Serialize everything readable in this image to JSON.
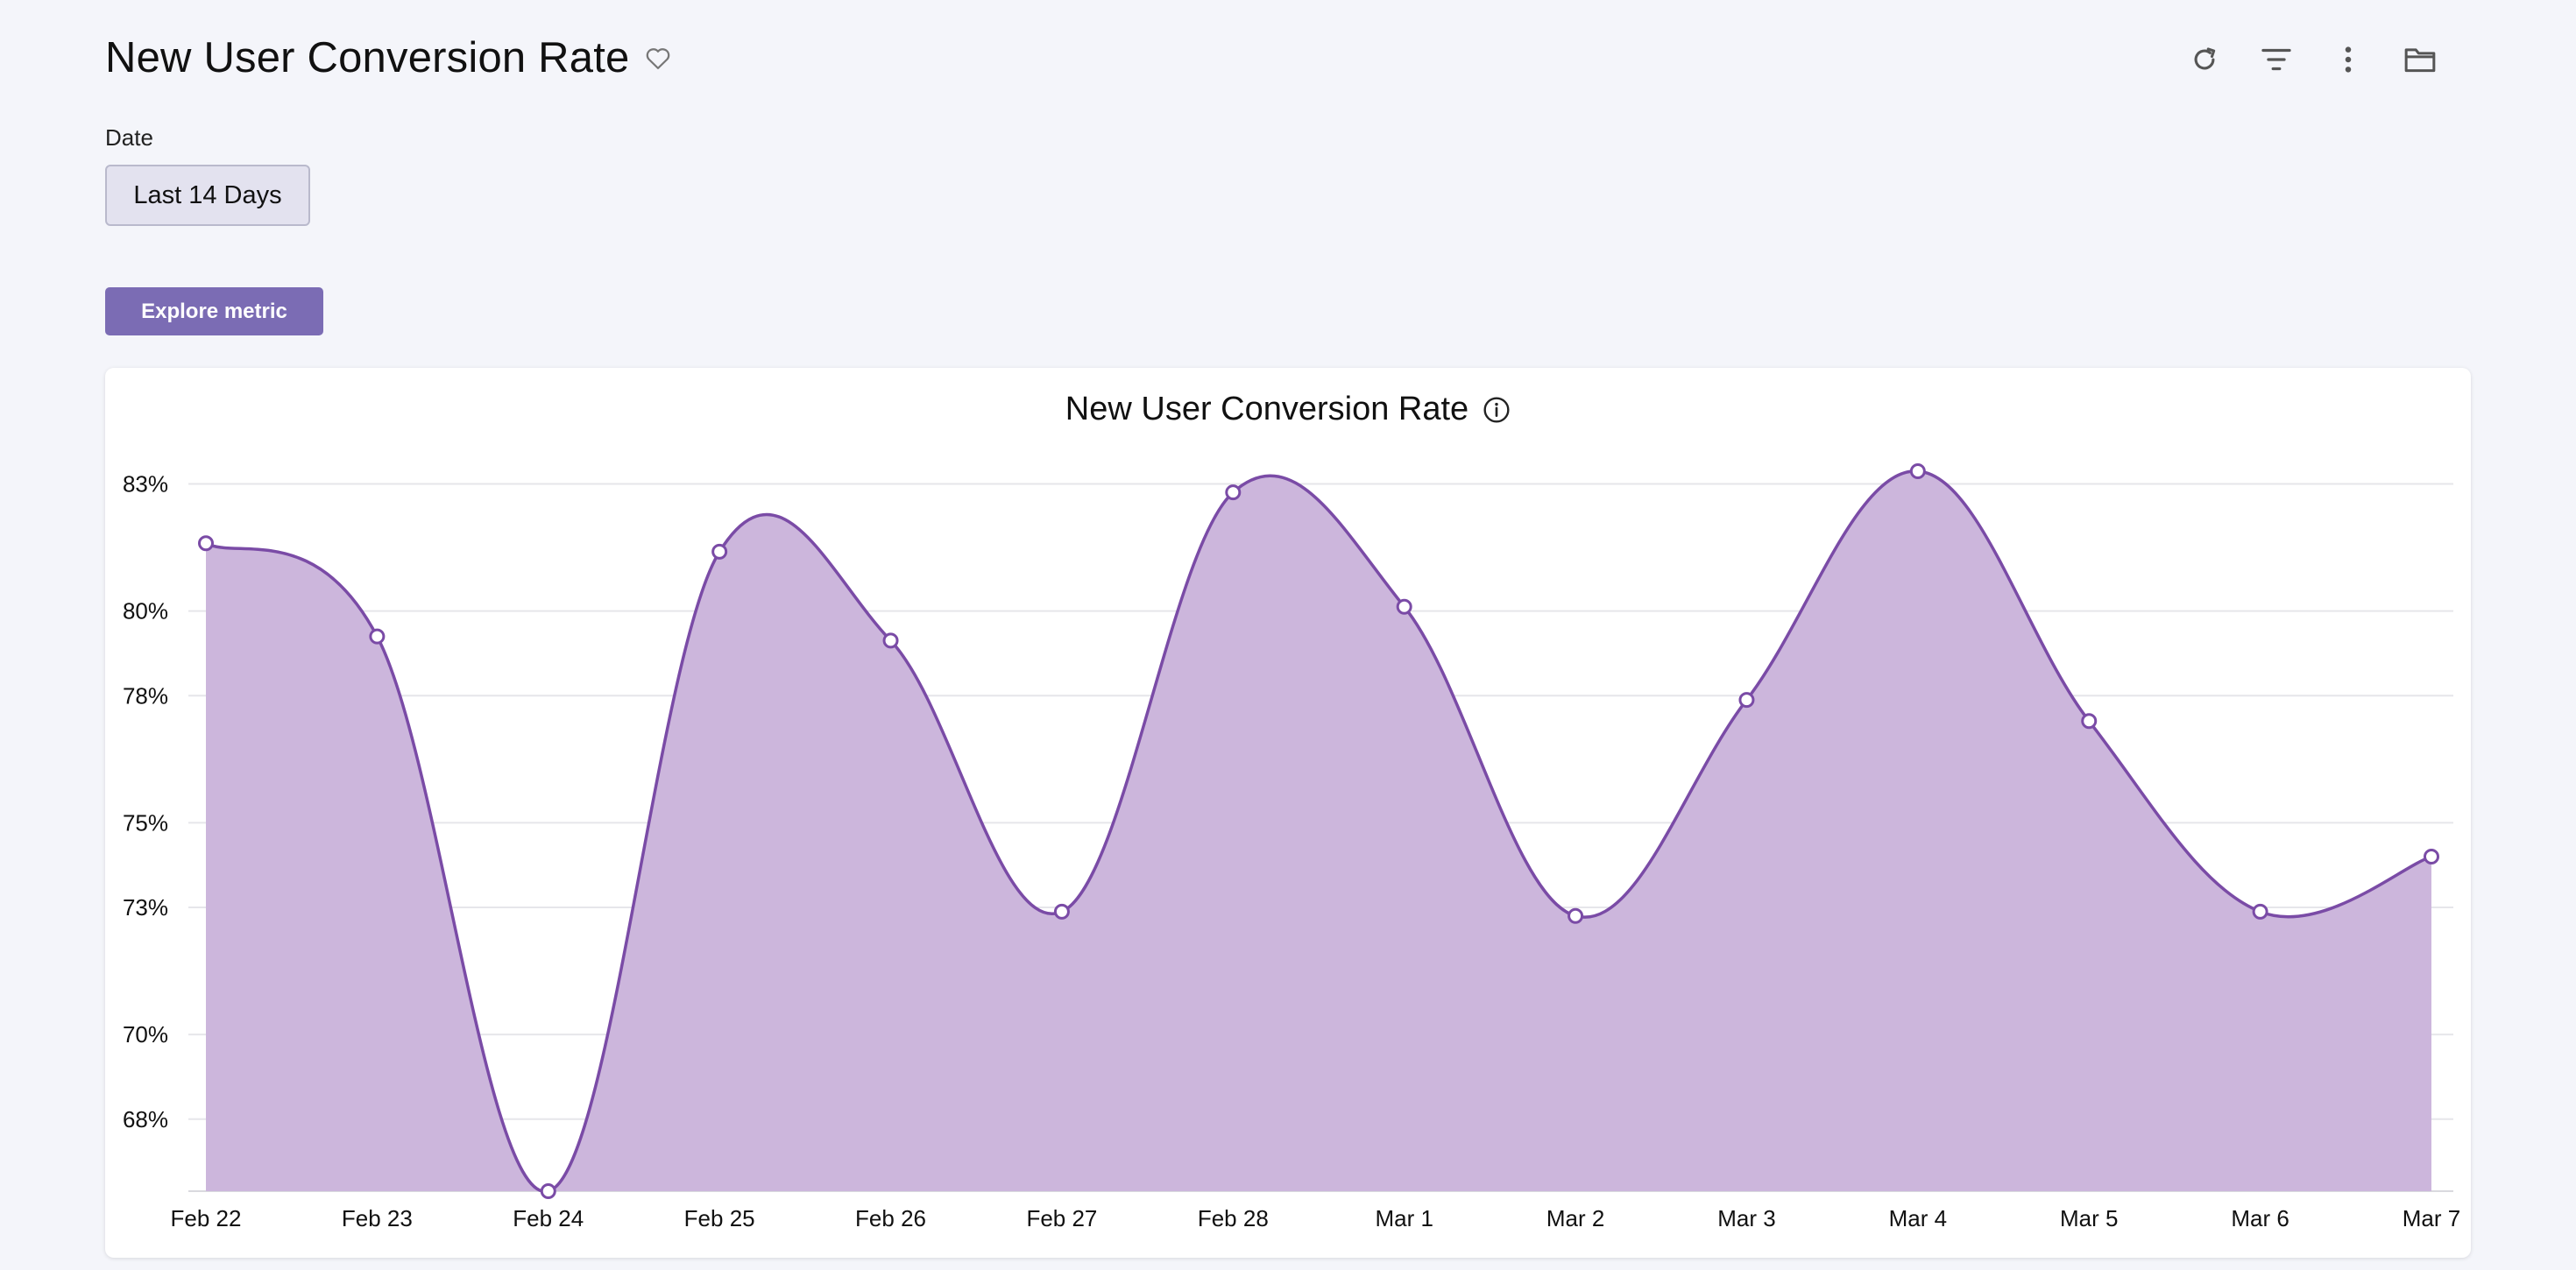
{
  "header": {
    "title": "New User Conversion Rate"
  },
  "toolbar": {
    "icons": [
      "refresh-icon",
      "filter-icon",
      "more-vertical-icon",
      "folder-icon"
    ]
  },
  "filters": {
    "date_label": "Date",
    "date_value": "Last 14 Days"
  },
  "actions": {
    "explore_label": "Explore metric"
  },
  "colors": {
    "accent": "#7b6cb4",
    "line": "#7a4ba6",
    "area": "#cbb5db"
  },
  "chart_data": {
    "type": "area",
    "title": "New User Conversion Rate",
    "xlabel": "",
    "ylabel": "",
    "categories": [
      "Feb 22",
      "Feb 23",
      "Feb 24",
      "Feb 25",
      "Feb 26",
      "Feb 27",
      "Feb 28",
      "Mar 1",
      "Mar 2",
      "Mar 3",
      "Mar 4",
      "Mar 5",
      "Mar 6",
      "Mar 7"
    ],
    "series": [
      {
        "values": [
          81.6,
          79.4,
          66.3,
          81.4,
          79.3,
          72.9,
          82.8,
          80.1,
          72.8,
          77.9,
          83.3,
          77.4,
          72.9,
          74.2
        ]
      }
    ],
    "y_ticks": [
      68,
      70,
      73,
      75,
      78,
      80,
      83
    ],
    "y_tick_labels": [
      "68%",
      "70%",
      "73%",
      "75%",
      "78%",
      "80%",
      "83%"
    ],
    "ylim": [
      66.3,
      83.3
    ],
    "grid": true,
    "legend": "none"
  }
}
